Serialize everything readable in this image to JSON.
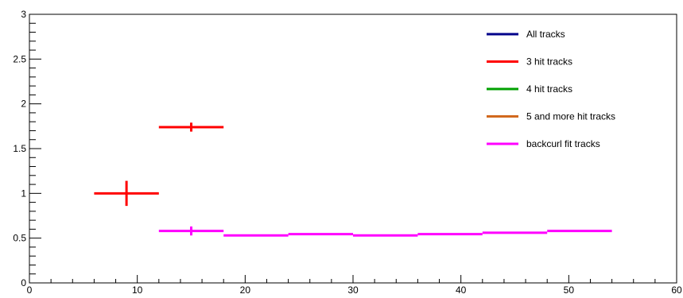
{
  "chart_data": {
    "type": "scatter",
    "title": "",
    "xlabel": "",
    "ylabel": "",
    "xlim": [
      0,
      60
    ],
    "ylim": [
      0,
      3
    ],
    "x_ticks": [
      0,
      10,
      20,
      30,
      40,
      50,
      60
    ],
    "y_ticks": [
      0,
      0.5,
      1,
      1.5,
      2,
      2.5,
      3
    ],
    "x_tick_labels": [
      "0",
      "10",
      "20",
      "30",
      "40",
      "50",
      "60"
    ],
    "y_tick_labels": [
      "0",
      "0.5",
      "1",
      "1.5",
      "2",
      "2.5",
      "3"
    ],
    "grid": false,
    "legend_position": "top-right",
    "series": [
      {
        "name": "All tracks",
        "color": "#00008b",
        "points": []
      },
      {
        "name": "3 hit tracks",
        "color": "#ff0000",
        "points": [
          {
            "x_low": 6,
            "x_high": 12,
            "x": 9,
            "y": 1.0,
            "y_err": 0.14
          },
          {
            "x_low": 12,
            "x_high": 18,
            "x": 15,
            "y": 1.74,
            "y_err": 0.05
          }
        ]
      },
      {
        "name": "4 hit tracks",
        "color": "#00a000",
        "points": []
      },
      {
        "name": "5 and more hit tracks",
        "color": "#d2691e",
        "points": []
      },
      {
        "name": "backcurl fit tracks",
        "color": "#ff00ff",
        "points": [
          {
            "x_low": 12,
            "x_high": 18,
            "x": 15,
            "y": 0.58,
            "y_err": 0.05
          },
          {
            "x_low": 18,
            "x_high": 24,
            "x": 21,
            "y": 0.53,
            "y_err": 0.005
          },
          {
            "x_low": 24,
            "x_high": 30,
            "x": 27,
            "y": 0.545,
            "y_err": 0.005
          },
          {
            "x_low": 30,
            "x_high": 36,
            "x": 33,
            "y": 0.53,
            "y_err": 0.005
          },
          {
            "x_low": 36,
            "x_high": 42,
            "x": 39,
            "y": 0.545,
            "y_err": 0.005
          },
          {
            "x_low": 42,
            "x_high": 48,
            "x": 45,
            "y": 0.56,
            "y_err": 0.005
          },
          {
            "x_low": 48,
            "x_high": 54,
            "x": 51,
            "y": 0.58,
            "y_err": 0.005
          }
        ]
      }
    ]
  }
}
